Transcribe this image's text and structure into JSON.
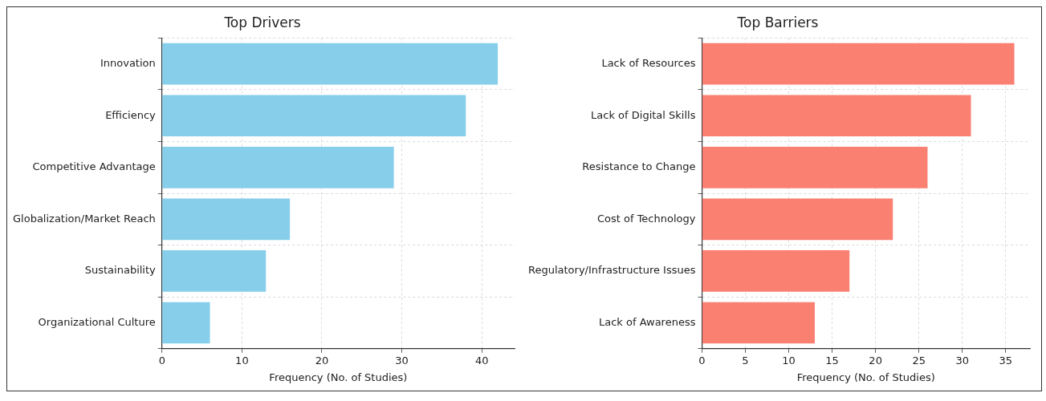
{
  "chart_data": [
    {
      "type": "bar",
      "orientation": "horizontal",
      "title": "Top Drivers",
      "xlabel": "Frequency (No. of Studies)",
      "categories": [
        "Innovation",
        "Efficiency",
        "Competitive Advantage",
        "Globalization/Market Reach",
        "Sustainability",
        "Organizational Culture"
      ],
      "values": [
        42,
        38,
        29,
        16,
        13,
        6
      ],
      "color": "#87ceeb",
      "xlim": [
        0,
        44.1
      ],
      "xticks": [
        0,
        10,
        20,
        30,
        40
      ],
      "grid": true,
      "legend": false
    },
    {
      "type": "bar",
      "orientation": "horizontal",
      "title": "Top Barriers",
      "xlabel": "Frequency (No. of Studies)",
      "categories": [
        "Lack of Resources",
        "Lack of Digital Skills",
        "Resistance to Change",
        "Cost of Technology",
        "Regulatory/Infrastructure Issues",
        "Lack of Awareness"
      ],
      "values": [
        36,
        31,
        26,
        22,
        17,
        13
      ],
      "color": "#fa8072",
      "xlim": [
        0,
        37.8
      ],
      "xticks": [
        0,
        5,
        10,
        15,
        20,
        25,
        30,
        35
      ],
      "grid": true,
      "legend": false
    }
  ]
}
